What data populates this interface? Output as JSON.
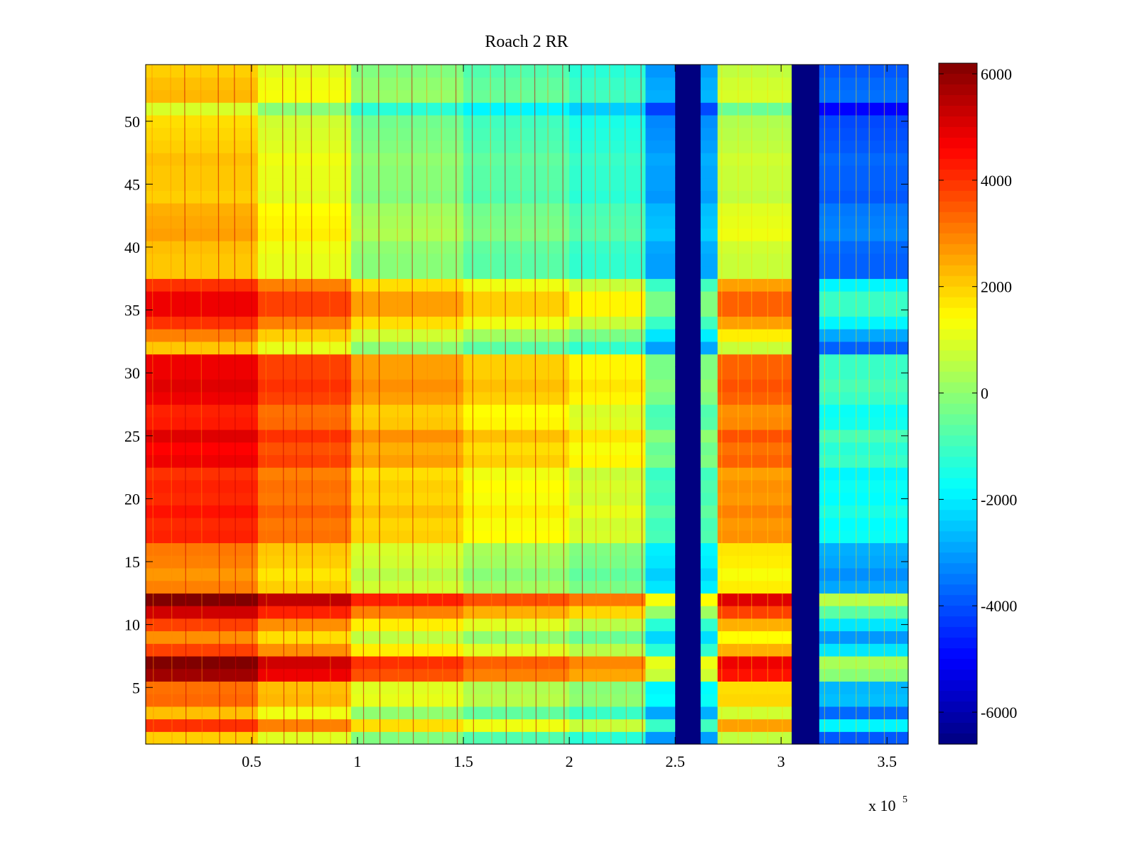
{
  "chart_data": {
    "type": "heatmap",
    "title": "Roach 2 RR",
    "xlabel": "",
    "ylabel": "",
    "x_multiplier_label": "x 10",
    "x_multiplier_exponent": "5",
    "xlim": [
      0,
      360000
    ],
    "ylim": [
      0.5,
      54.5
    ],
    "x_ticks": [
      {
        "value": 50000,
        "label": "0.5"
      },
      {
        "value": 100000,
        "label": "1"
      },
      {
        "value": 150000,
        "label": "1.5"
      },
      {
        "value": 200000,
        "label": "2"
      },
      {
        "value": 250000,
        "label": "2.5"
      },
      {
        "value": 300000,
        "label": "3"
      },
      {
        "value": 350000,
        "label": "3.5"
      }
    ],
    "y_ticks": [
      {
        "value": 5,
        "label": "5"
      },
      {
        "value": 10,
        "label": "10"
      },
      {
        "value": 15,
        "label": "15"
      },
      {
        "value": 20,
        "label": "20"
      },
      {
        "value": 25,
        "label": "25"
      },
      {
        "value": 30,
        "label": "30"
      },
      {
        "value": 35,
        "label": "35"
      },
      {
        "value": 40,
        "label": "40"
      },
      {
        "value": 45,
        "label": "45"
      },
      {
        "value": 50,
        "label": "50"
      }
    ],
    "colorbar": {
      "colormap": "jet",
      "clim": [
        -6600,
        6200
      ],
      "ticks": [
        {
          "value": 6000,
          "label": "6000"
        },
        {
          "value": 4000,
          "label": "4000"
        },
        {
          "value": 2000,
          "label": "2000"
        },
        {
          "value": 0,
          "label": "0"
        },
        {
          "value": -2000,
          "label": "-2000"
        },
        {
          "value": -4000,
          "label": "-4000"
        },
        {
          "value": -6000,
          "label": "-6000"
        }
      ]
    },
    "rows": 54,
    "column_segments": [
      {
        "x_start": 0,
        "x_end": 53000,
        "base_value": 2500
      },
      {
        "x_start": 53000,
        "x_end": 97000,
        "base_value": 1500
      },
      {
        "x_start": 97000,
        "x_end": 150000,
        "base_value": 300
      },
      {
        "x_start": 150000,
        "x_end": 200000,
        "base_value": -300
      },
      {
        "x_start": 200000,
        "x_end": 236000,
        "base_value": -800
      },
      {
        "x_start": 236000,
        "x_end": 250000,
        "base_value": -2600
      },
      {
        "x_start": 250000,
        "x_end": 262000,
        "base_value": -6600
      },
      {
        "x_start": 262000,
        "x_end": 270000,
        "base_value": -2500
      },
      {
        "x_start": 270000,
        "x_end": 305000,
        "base_value": 1100
      },
      {
        "x_start": 305000,
        "x_end": 318000,
        "base_value": -6600
      },
      {
        "x_start": 318000,
        "x_end": 360000,
        "base_value": -3400
      }
    ],
    "row_offsets": [
      -500,
      1500,
      -300,
      800,
      700,
      3300,
      3700,
      1300,
      300,
      1300,
      2700,
      3900,
      500,
      200,
      500,
      600,
      1700,
      1600,
      1900,
      1600,
      1700,
      1500,
      2300,
      2100,
      2500,
      1800,
      1700,
      2300,
      2500,
      2300,
      2300,
      -400,
      500,
      1500,
      2300,
      2300,
      1500,
      -400,
      -400,
      -300,
      100,
      0,
      -100,
      -500,
      -400,
      -400,
      -300,
      -500,
      -600,
      -700,
      -1600,
      -200,
      -300,
      -500
    ]
  }
}
